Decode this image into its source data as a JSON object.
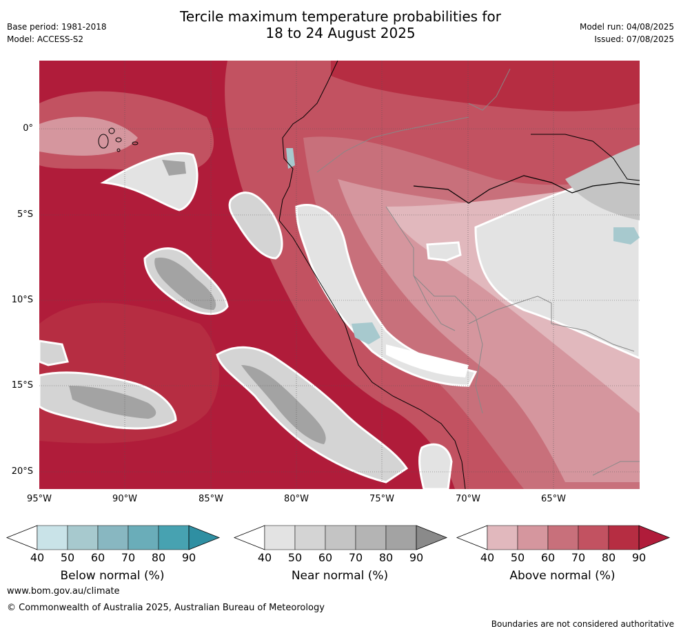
{
  "title_line1": "Tercile maximum temperature probabilities for",
  "title_line2": "18 to 24 August 2025",
  "base_period": "Base period: 1981-2018",
  "model": "Model: ACCESS-S2",
  "model_run": "Model run: 04/08/2025",
  "issued": "Issued: 07/08/2025",
  "lat_ticks": [
    "0°",
    "5°S",
    "10°S",
    "15°S",
    "20°S"
  ],
  "lon_ticks": [
    "95°W",
    "90°W",
    "85°W",
    "80°W",
    "75°W",
    "70°W",
    "65°W"
  ],
  "colorbars": [
    {
      "label": "Below normal (%)",
      "ticks": [
        "40",
        "50",
        "60",
        "70",
        "80",
        "90"
      ],
      "colors": [
        "#c9e3e8",
        "#a7c9ce",
        "#88b7c1",
        "#6aadb9",
        "#47a2b1",
        "#2f8fa2"
      ]
    },
    {
      "label": "Near normal (%)",
      "ticks": [
        "40",
        "50",
        "60",
        "70",
        "80",
        "90"
      ],
      "colors": [
        "#e3e3e3",
        "#d4d4d4",
        "#c4c4c4",
        "#b4b4b4",
        "#a3a3a3",
        "#8a8a8a"
      ]
    },
    {
      "label": "Above normal (%)",
      "ticks": [
        "40",
        "50",
        "60",
        "70",
        "80",
        "90"
      ],
      "colors": [
        "#e1b8bd",
        "#d5969e",
        "#c8707b",
        "#c25261",
        "#b62d42",
        "#b01c3a"
      ]
    }
  ],
  "footer_url": "www.bom.gov.au/climate",
  "footer_copyright": "© Commonwealth of Australia 2025, Australian Bureau of Meteorology",
  "disclaimer": "Boundaries are not considered authoritative"
}
